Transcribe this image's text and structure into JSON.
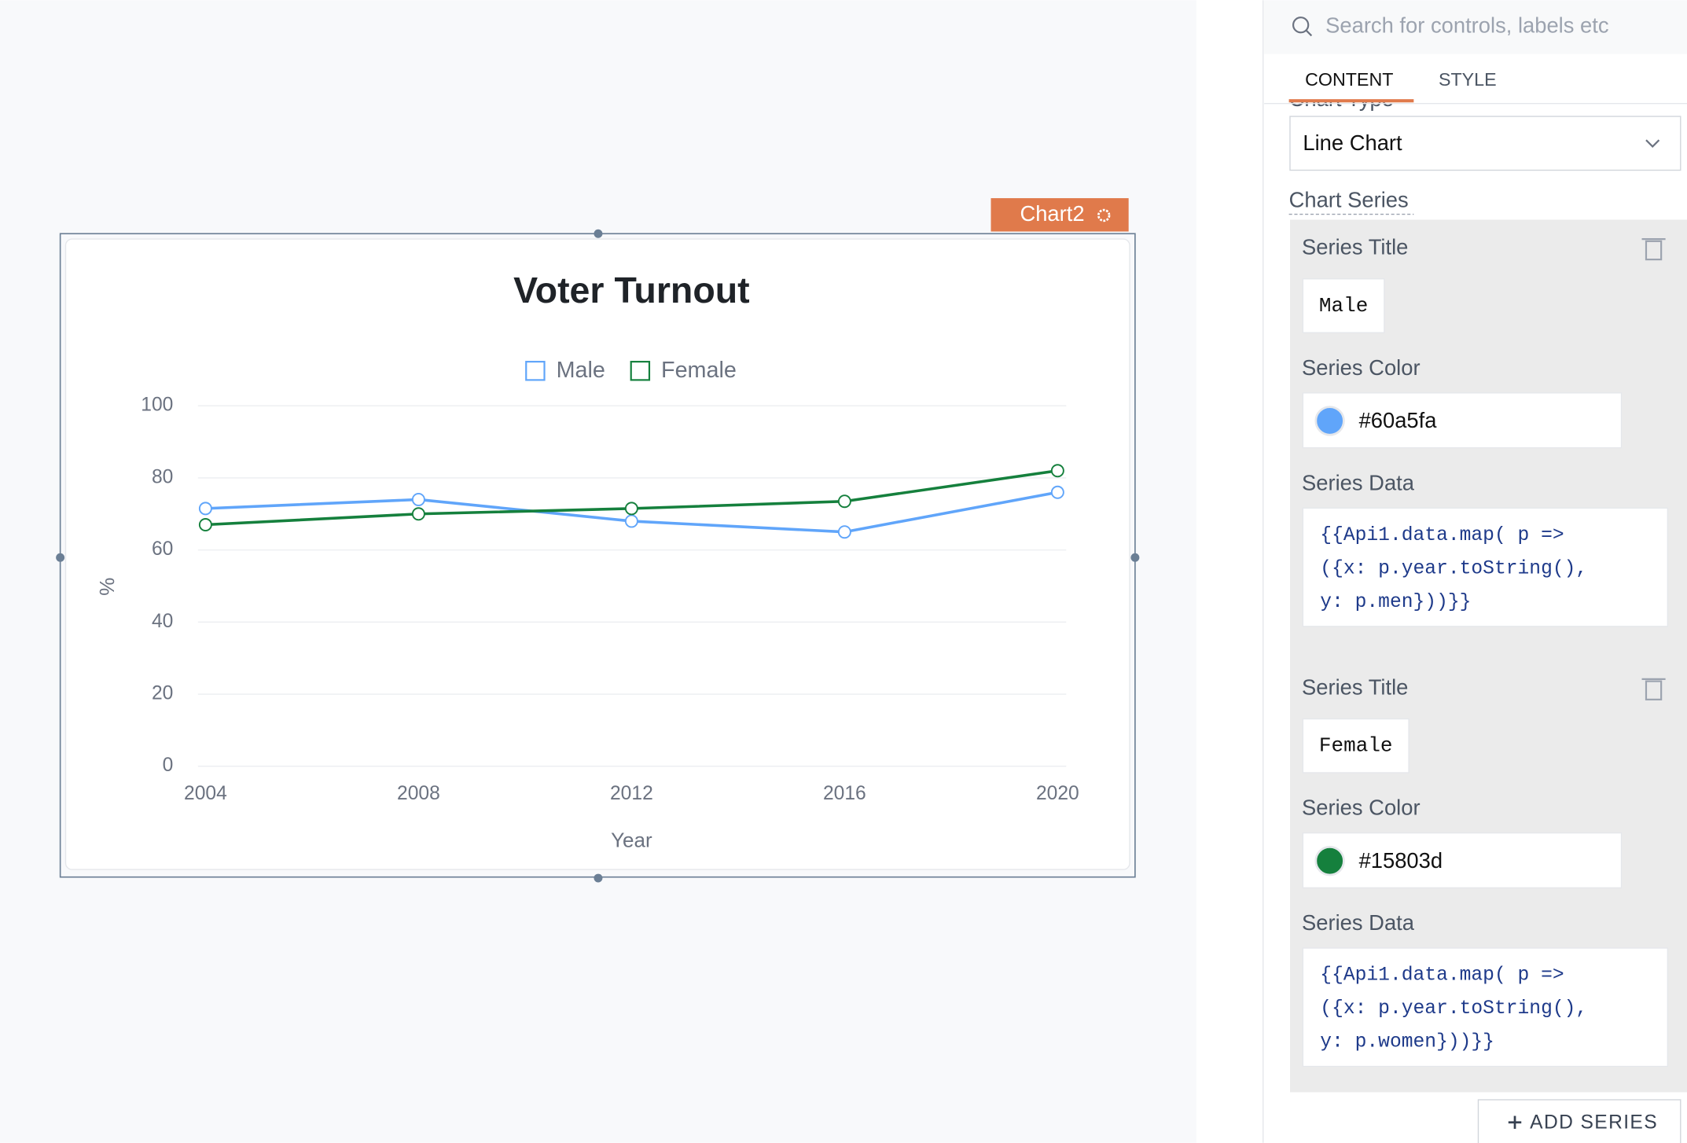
{
  "canvas": {
    "widget_label": "Chart2"
  },
  "chart_data": {
    "type": "line",
    "title": "Voter Turnout",
    "xlabel": "Year",
    "ylabel": "%",
    "categories": [
      "2004",
      "2008",
      "2012",
      "2016",
      "2020"
    ],
    "series": [
      {
        "name": "Male",
        "color": "#60a5fa",
        "values": [
          71.5,
          74,
          68,
          65,
          76
        ]
      },
      {
        "name": "Female",
        "color": "#15803d",
        "values": [
          67,
          70,
          71.5,
          73.5,
          82
        ]
      }
    ],
    "ylim": [
      0,
      100
    ],
    "yticks": [
      0,
      20,
      40,
      60,
      80,
      100
    ],
    "grid": true,
    "legend": "top"
  },
  "panel": {
    "search_placeholder": "Search for controls, labels etc",
    "tabs": [
      "CONTENT",
      "STYLE"
    ],
    "chart_type_label": "Chart Type",
    "chart_type": "Line Chart",
    "chart_series_label": "Chart Series",
    "series": [
      {
        "title_label": "Series Title",
        "color_label": "Series Color",
        "data_label": "Series Data",
        "data": [
          "{{Api1.data.map( p =>",
          "({x: p.year.toString(),",
          "y: p.men}))}}"
        ]
      },
      {
        "title_label": "Series Title",
        "color_label": "Series Color",
        "data_label": "Series Data",
        "data": [
          "{{Api1.data.map( p =>",
          "({x: p.year.toString(),",
          "y: p.women}))}}"
        ]
      }
    ],
    "add_series": "ADD SERIES"
  }
}
